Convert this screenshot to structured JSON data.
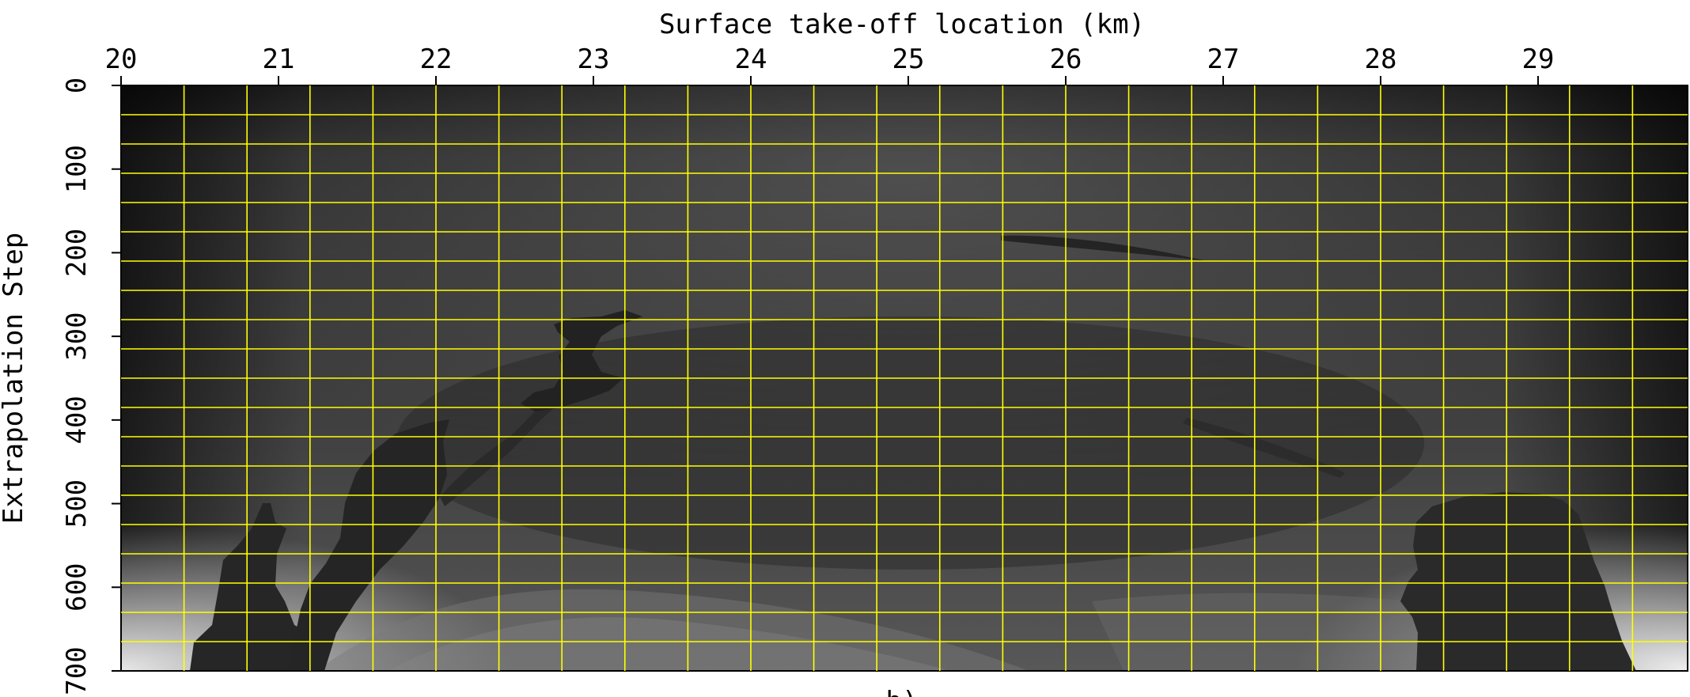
{
  "chart_data": {
    "type": "heatmap",
    "title": "",
    "xlabel": "Surface take-off location (km)",
    "ylabel": "Extrapolation Step",
    "caption": "b)",
    "xlim": [
      20,
      29.95
    ],
    "ylim": [
      0,
      700
    ],
    "x_ticks": [
      20,
      21,
      22,
      23,
      24,
      25,
      26,
      27,
      28,
      29
    ],
    "y_ticks": [
      0,
      100,
      200,
      300,
      400,
      500,
      600,
      700
    ],
    "x_axis_position": "top",
    "y_axis_reversed": true,
    "colormap": "grayscale",
    "grid": true,
    "grid_color": "#ffff00",
    "grid_x_step": 0.4,
    "grid_y_step": 35
  }
}
